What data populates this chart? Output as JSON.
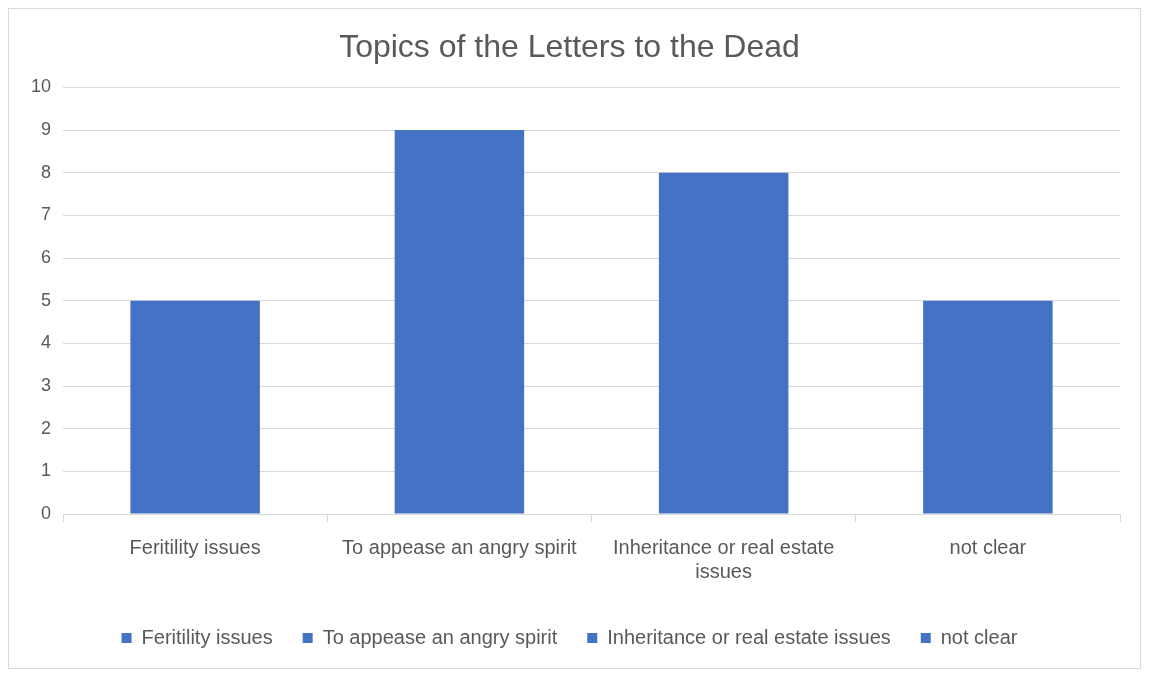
{
  "chart_data": {
    "type": "bar",
    "title": "Topics of the Letters to the Dead",
    "categories": [
      "Feritility issues",
      "To appease an angry spirit",
      "Inheritance or real estate issues",
      "not clear"
    ],
    "series": [
      {
        "name": "Feritility issues",
        "color": "#4472c4",
        "values": [
          5,
          null,
          null,
          null
        ]
      },
      {
        "name": "To appease an angry spirit",
        "color": "#4472c4",
        "values": [
          null,
          9,
          null,
          null
        ]
      },
      {
        "name": "Inheritance or real estate issues",
        "color": "#4472c4",
        "values": [
          null,
          null,
          8,
          null
        ]
      },
      {
        "name": "not clear",
        "color": "#4472c4",
        "values": [
          null,
          null,
          null,
          5
        ]
      }
    ],
    "stacked": true,
    "ylim": [
      0,
      10
    ],
    "yticks": [
      0,
      1,
      2,
      3,
      4,
      5,
      6,
      7,
      8,
      9,
      10
    ],
    "grid": "y",
    "legend": "bottom"
  }
}
